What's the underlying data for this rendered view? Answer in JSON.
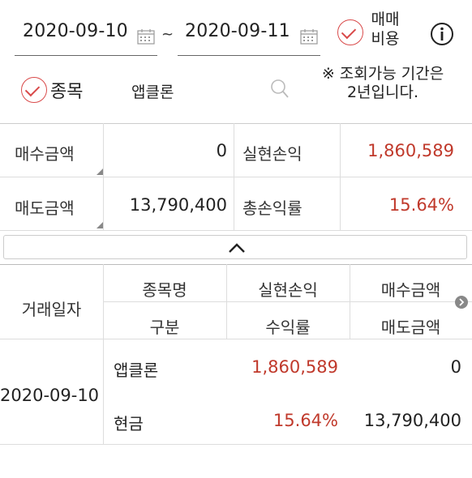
{
  "filter": {
    "start_date": "2020-09-10",
    "tilde": "~",
    "end_date": "2020-09-11",
    "fee_label_line1": "매매",
    "fee_label_line2": "비용",
    "info_icon": "info-icon",
    "stock_check_label": "종목",
    "stock_name": "앱클론",
    "notice_line1": "※ 조회가능 기간은",
    "notice_line2": "2년입니다."
  },
  "summary": {
    "buy_amount_label": "매수금액",
    "buy_amount_value": "0",
    "realized_pl_label": "실현손익",
    "realized_pl_value": "1,860,589",
    "sell_amount_label": "매도금액",
    "sell_amount_value": "13,790,400",
    "total_return_label": "총손익률",
    "total_return_value": "15.64%"
  },
  "table": {
    "headers": {
      "date": "거래일자",
      "name": "종목명",
      "type": "구분",
      "realized_pl": "실현손익",
      "return_rate": "수익률",
      "buy_amount": "매수금액",
      "sell_amount": "매도금액"
    },
    "rows": [
      {
        "date": "2020-09-10",
        "name": "앱클론",
        "type": "현금",
        "realized_pl": "1,860,589",
        "return_rate": "15.64%",
        "buy_amount": "0",
        "sell_amount": "13,790,400"
      }
    ]
  },
  "colors": {
    "accent_red": "#c0392b",
    "check_red": "#d94a4a"
  }
}
